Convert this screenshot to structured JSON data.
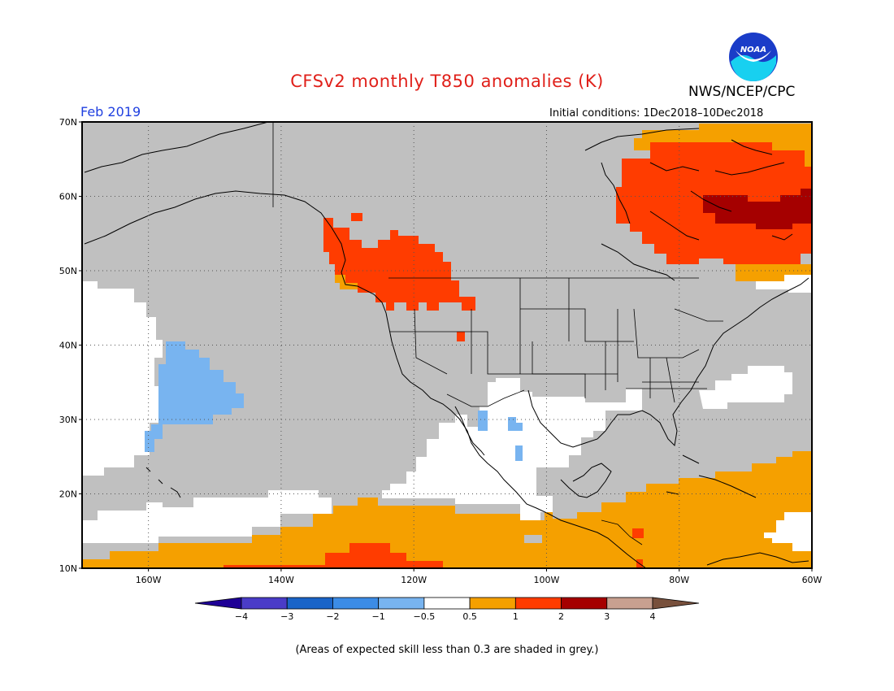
{
  "title": "CFSv2 monthly T850 anomalies (K)",
  "organization": "NWS/NCEP/CPC",
  "forecast_month": "Feb 2019",
  "initial_conditions": "Initial conditions: 1Dec2018–10Dec2018",
  "footer_note": "(Areas of expected skill less than 0.3 are shaded in grey.)",
  "logo_text": "NOAA",
  "map": {
    "lat_labels": [
      "70N",
      "60N",
      "50N",
      "40N",
      "30N",
      "20N",
      "10N"
    ],
    "lon_labels": [
      "160W",
      "140W",
      "120W",
      "100W",
      "80W",
      "60W"
    ],
    "lat_values": [
      70,
      60,
      50,
      40,
      30,
      20,
      10
    ],
    "lon_values": [
      -160,
      -140,
      -120,
      -100,
      -80,
      -60
    ],
    "lon_range": [
      -170,
      -60
    ],
    "lat_range": [
      10,
      70
    ],
    "grid_lines": "dotted",
    "grey_meaning": "skill < 0.3"
  },
  "colorbar": {
    "labels": [
      "−4",
      "−3",
      "−2",
      "−1",
      "−0.5",
      "0.5",
      "1",
      "2",
      "3",
      "4"
    ],
    "colors": [
      "#1e0096",
      "#4a3cc8",
      "#1a64c8",
      "#3c8ce6",
      "#78b4f0",
      "#ffffff",
      "#f5a000",
      "#ff3c00",
      "#a50000",
      "#c8a090",
      "#78503c"
    ]
  },
  "colors": {
    "grey_low_skill": "#c0c0c0",
    "title_red": "#e0201a",
    "month_blue": "#2040e0"
  }
}
